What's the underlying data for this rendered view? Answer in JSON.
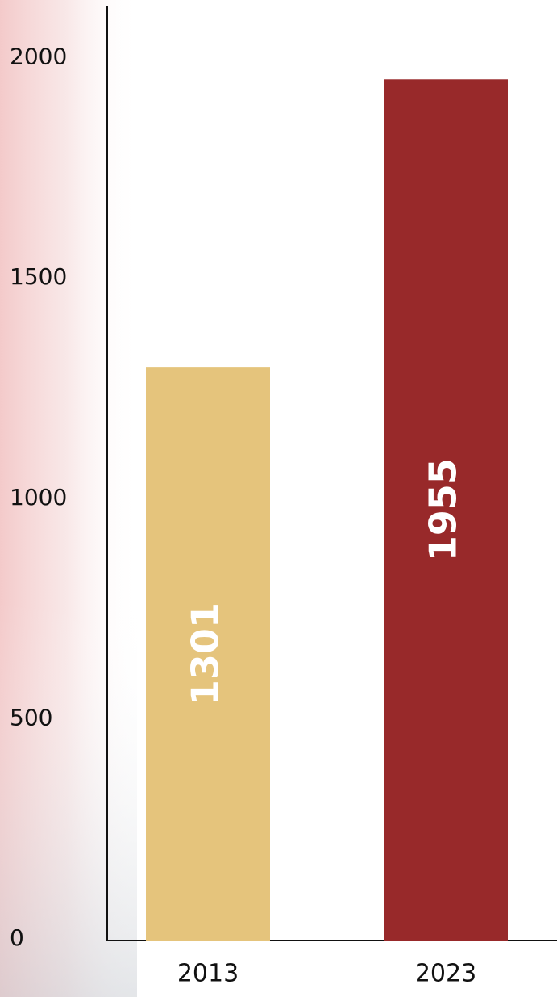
{
  "chart_data": {
    "type": "bar",
    "categories": [
      "2013",
      "2023"
    ],
    "values": [
      1301,
      1955
    ],
    "colors": [
      "#e5c47c",
      "#98292a"
    ],
    "ylim": [
      0,
      2120
    ],
    "yticks": [
      0,
      500,
      1000,
      1500,
      2000
    ],
    "grid": false
  }
}
